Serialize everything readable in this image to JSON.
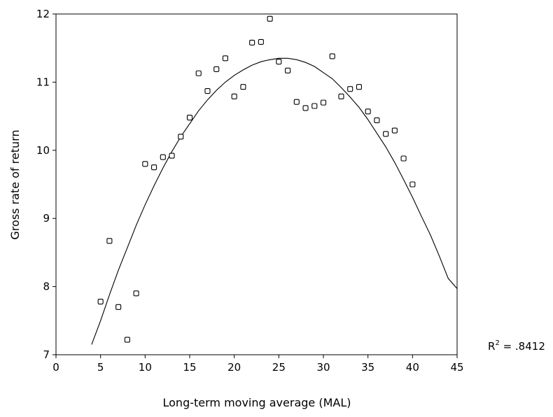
{
  "chart_data": {
    "type": "scatter",
    "xlabel": "Long-term moving average (MAL)",
    "ylabel": "Gross rate of return",
    "xlim": [
      0,
      45
    ],
    "ylim": [
      7,
      12
    ],
    "x_ticks": [
      "0",
      "5",
      "10",
      "15",
      "20",
      "25",
      "30",
      "35",
      "40",
      "45"
    ],
    "y_ticks": [
      "7",
      "8",
      "9",
      "10",
      "11",
      "12"
    ],
    "grid": false,
    "legend": "none",
    "marker": "open-square",
    "r_squared_label": {
      "prefix": "R",
      "superscript": "2",
      "value": " = .8412"
    },
    "points": [
      {
        "x": 5,
        "y": 7.78
      },
      {
        "x": 6,
        "y": 8.67
      },
      {
        "x": 7,
        "y": 7.7
      },
      {
        "x": 8,
        "y": 7.22
      },
      {
        "x": 9,
        "y": 7.9
      },
      {
        "x": 10,
        "y": 9.8
      },
      {
        "x": 11,
        "y": 9.75
      },
      {
        "x": 12,
        "y": 9.9
      },
      {
        "x": 13,
        "y": 9.92
      },
      {
        "x": 14,
        "y": 10.2
      },
      {
        "x": 15,
        "y": 10.48
      },
      {
        "x": 16,
        "y": 11.13
      },
      {
        "x": 17,
        "y": 10.87
      },
      {
        "x": 18,
        "y": 11.19
      },
      {
        "x": 19,
        "y": 11.35
      },
      {
        "x": 20,
        "y": 10.79
      },
      {
        "x": 21,
        "y": 10.93
      },
      {
        "x": 22,
        "y": 11.58
      },
      {
        "x": 23,
        "y": 11.59
      },
      {
        "x": 24,
        "y": 11.93
      },
      {
        "x": 25,
        "y": 11.3
      },
      {
        "x": 26,
        "y": 11.17
      },
      {
        "x": 27,
        "y": 10.71
      },
      {
        "x": 28,
        "y": 10.62
      },
      {
        "x": 29,
        "y": 10.65
      },
      {
        "x": 30,
        "y": 10.7
      },
      {
        "x": 31,
        "y": 11.38
      },
      {
        "x": 32,
        "y": 10.79
      },
      {
        "x": 33,
        "y": 10.9
      },
      {
        "x": 34,
        "y": 10.93
      },
      {
        "x": 35,
        "y": 10.57
      },
      {
        "x": 36,
        "y": 10.44
      },
      {
        "x": 37,
        "y": 10.24
      },
      {
        "x": 38,
        "y": 10.29
      },
      {
        "x": 39,
        "y": 9.88
      },
      {
        "x": 40,
        "y": 9.5
      }
    ],
    "fit_curve": [
      {
        "x": 4,
        "y": 7.15
      },
      {
        "x": 5,
        "y": 7.5
      },
      {
        "x": 6,
        "y": 7.88
      },
      {
        "x": 7,
        "y": 8.24
      },
      {
        "x": 8,
        "y": 8.57
      },
      {
        "x": 9,
        "y": 8.9
      },
      {
        "x": 10,
        "y": 9.2
      },
      {
        "x": 11,
        "y": 9.48
      },
      {
        "x": 12,
        "y": 9.74
      },
      {
        "x": 13,
        "y": 9.98
      },
      {
        "x": 14,
        "y": 10.2
      },
      {
        "x": 15,
        "y": 10.39
      },
      {
        "x": 16,
        "y": 10.58
      },
      {
        "x": 17,
        "y": 10.74
      },
      {
        "x": 18,
        "y": 10.88
      },
      {
        "x": 19,
        "y": 11.0
      },
      {
        "x": 20,
        "y": 11.1
      },
      {
        "x": 21,
        "y": 11.18
      },
      {
        "x": 22,
        "y": 11.25
      },
      {
        "x": 23,
        "y": 11.3
      },
      {
        "x": 24,
        "y": 11.33
      },
      {
        "x": 25,
        "y": 11.35
      },
      {
        "x": 26,
        "y": 11.35
      },
      {
        "x": 27,
        "y": 11.33
      },
      {
        "x": 28,
        "y": 11.29
      },
      {
        "x": 29,
        "y": 11.23
      },
      {
        "x": 30,
        "y": 11.14
      },
      {
        "x": 31,
        "y": 11.05
      },
      {
        "x": 32,
        "y": 10.92
      },
      {
        "x": 33,
        "y": 10.78
      },
      {
        "x": 34,
        "y": 10.63
      },
      {
        "x": 35,
        "y": 10.45
      },
      {
        "x": 36,
        "y": 10.25
      },
      {
        "x": 37,
        "y": 10.05
      },
      {
        "x": 38,
        "y": 9.82
      },
      {
        "x": 39,
        "y": 9.57
      },
      {
        "x": 40,
        "y": 9.31
      },
      {
        "x": 41,
        "y": 9.03
      },
      {
        "x": 42,
        "y": 8.76
      },
      {
        "x": 43,
        "y": 8.45
      },
      {
        "x": 44,
        "y": 8.12
      },
      {
        "x": 45,
        "y": 7.97
      }
    ]
  }
}
